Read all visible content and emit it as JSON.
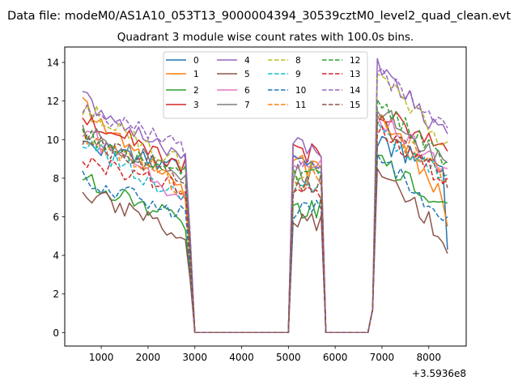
{
  "chart_data": {
    "type": "line",
    "suptitle": "Data file: modeM0/AS1A10_053T13_9000004394_30539cztM0_level2_quad_clean.evt",
    "title": "Quadrant 3 module wise count rates with 100.0s bins.",
    "xlabel": "",
    "ylabel": "",
    "x_offset_label": "+3.5936e8",
    "xlim": [
      220,
      8800
    ],
    "ylim": [
      -0.7,
      14.8
    ],
    "xticks": [
      1000,
      2000,
      3000,
      4000,
      5000,
      6000,
      7000,
      8000
    ],
    "yticks": [
      0,
      2,
      4,
      6,
      8,
      10,
      12,
      14
    ],
    "legend_position": "upper center",
    "segments": [
      {
        "x": [
          600,
          700,
          800,
          900,
          1000,
          1100,
          1200,
          1300,
          1400,
          1500,
          1600,
          1700,
          1800,
          1900,
          2000,
          2100,
          2200,
          2300,
          2400,
          2500,
          2600,
          2700,
          2800,
          2900,
          3000
        ],
        "anchor_index": 0,
        "taper_index": 22
      },
      {
        "x": [
          3000,
          3200,
          3400,
          3600,
          3800,
          4000,
          4200,
          4400,
          4600,
          4800,
          5000
        ],
        "flat_value": 0
      },
      {
        "x": [
          5000,
          5100,
          5200,
          5300,
          5400,
          5500,
          5600,
          5700,
          5800
        ],
        "anchor_index": 2
      },
      {
        "x": [
          5800,
          6000,
          6200,
          6400,
          6600,
          6700
        ],
        "flat_value": 0
      },
      {
        "x": [
          6700,
          6800,
          6900,
          7000,
          7100,
          7200,
          7300,
          7400,
          7500,
          7600,
          7700,
          7800,
          7900,
          8000,
          8100,
          8200,
          8300,
          8400
        ],
        "anchor_index": 2,
        "taper_index": 16
      }
    ],
    "series": [
      {
        "name": "0",
        "color": "#1f77b4",
        "dash": "solid",
        "levels": [
          9.6,
          8.6,
          8.8,
          9.8,
          4.3
        ]
      },
      {
        "name": "1",
        "color": "#ff7f0e",
        "dash": "solid",
        "levels": [
          11.8,
          7.0,
          8.6,
          11.6,
          5.5
        ]
      },
      {
        "name": "2",
        "color": "#2ca02c",
        "dash": "solid",
        "levels": [
          8.0,
          5.6,
          6.5,
          9.0,
          6.7
        ]
      },
      {
        "name": "3",
        "color": "#d62728",
        "dash": "solid",
        "levels": [
          11.2,
          8.6,
          9.2,
          11.6,
          9.4
        ]
      },
      {
        "name": "4",
        "color": "#9467bd",
        "dash": "solid",
        "levels": [
          12.1,
          9.0,
          9.6,
          13.8,
          10.3
        ]
      },
      {
        "name": "5",
        "color": "#8c564b",
        "dash": "solid",
        "levels": [
          7.3,
          5.0,
          5.6,
          8.6,
          4.1
        ]
      },
      {
        "name": "6",
        "color": "#e377c2",
        "dash": "solid",
        "levels": [
          10.4,
          6.8,
          8.5,
          11.3,
          8.5
        ]
      },
      {
        "name": "7",
        "color": "#7f7f7f",
        "dash": "solid",
        "levels": [
          10.6,
          8.0,
          8.2,
          11.7,
          8.8
        ]
      },
      {
        "name": "8",
        "color": "#bcbd22",
        "dash": "dashed",
        "levels": [
          11.7,
          8.6,
          8.4,
          13.5,
          9.9
        ]
      },
      {
        "name": "9",
        "color": "#17becf",
        "dash": "dashed",
        "levels": [
          9.8,
          7.0,
          7.6,
          10.5,
          8.2
        ]
      },
      {
        "name": "10",
        "color": "#1f77b4",
        "dash": "dashed",
        "levels": [
          8.0,
          6.0,
          6.4,
          9.3,
          6.0
        ]
      },
      {
        "name": "11",
        "color": "#ff7f0e",
        "dash": "dashed",
        "levels": [
          10.4,
          7.4,
          8.0,
          11.0,
          8.0
        ]
      },
      {
        "name": "12",
        "color": "#2ca02c",
        "dash": "dashed",
        "levels": [
          10.2,
          8.4,
          8.0,
          12.0,
          8.9
        ]
      },
      {
        "name": "13",
        "color": "#d62728",
        "dash": "dashed",
        "levels": [
          9.0,
          7.4,
          7.2,
          10.4,
          8.0
        ]
      },
      {
        "name": "14",
        "color": "#9467bd",
        "dash": "dashed",
        "levels": [
          11.8,
          9.4,
          9.0,
          13.6,
          10.6
        ]
      },
      {
        "name": "15",
        "color": "#8c564b",
        "dash": "dashed",
        "levels": [
          10.0,
          8.0,
          7.6,
          11.2,
          7.5
        ]
      }
    ]
  }
}
